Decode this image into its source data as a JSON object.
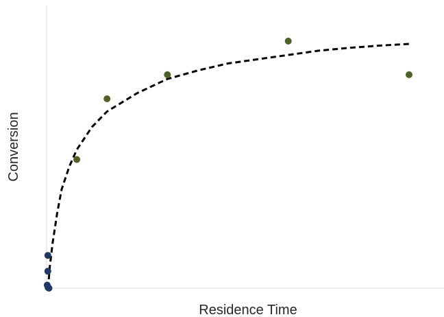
{
  "chart_data": {
    "type": "scatter",
    "title": "",
    "xlabel": "Residence Time",
    "ylabel": "Conversion",
    "xlim": [
      0,
      13.1
    ],
    "ylim": [
      0,
      1
    ],
    "grid": false,
    "legend": "none",
    "series": [
      {
        "color": "#1F3864",
        "marker": "circle",
        "points": [
          [
            0.04,
            0.116
          ],
          [
            0.04,
            0.06
          ],
          [
            0.02,
            0.011
          ],
          [
            0.05,
            0.002
          ],
          [
            0.08,
            0.0
          ]
        ]
      },
      {
        "color": "#4F6228",
        "marker": "circle",
        "points": [
          [
            1.0,
            0.455
          ],
          [
            2.0,
            0.67
          ],
          [
            4.0,
            0.755
          ],
          [
            8.0,
            0.874
          ],
          [
            12.0,
            0.755
          ]
        ]
      }
    ],
    "fit_curve": {
      "style": "dashed",
      "color": "#000000",
      "points": [
        [
          0.05,
          0.0
        ],
        [
          0.1,
          0.07
        ],
        [
          0.2,
          0.16
        ],
        [
          0.35,
          0.265
        ],
        [
          0.5,
          0.35
        ],
        [
          0.75,
          0.43
        ],
        [
          1.0,
          0.49
        ],
        [
          1.5,
          0.57
        ],
        [
          2.0,
          0.625
        ],
        [
          3.0,
          0.69
        ],
        [
          4.0,
          0.74
        ],
        [
          5.0,
          0.77
        ],
        [
          6.0,
          0.795
        ],
        [
          7.0,
          0.81
        ],
        [
          8.0,
          0.825
        ],
        [
          9.0,
          0.84
        ],
        [
          10.0,
          0.85
        ],
        [
          11.0,
          0.858
        ],
        [
          12.0,
          0.864
        ]
      ]
    }
  }
}
